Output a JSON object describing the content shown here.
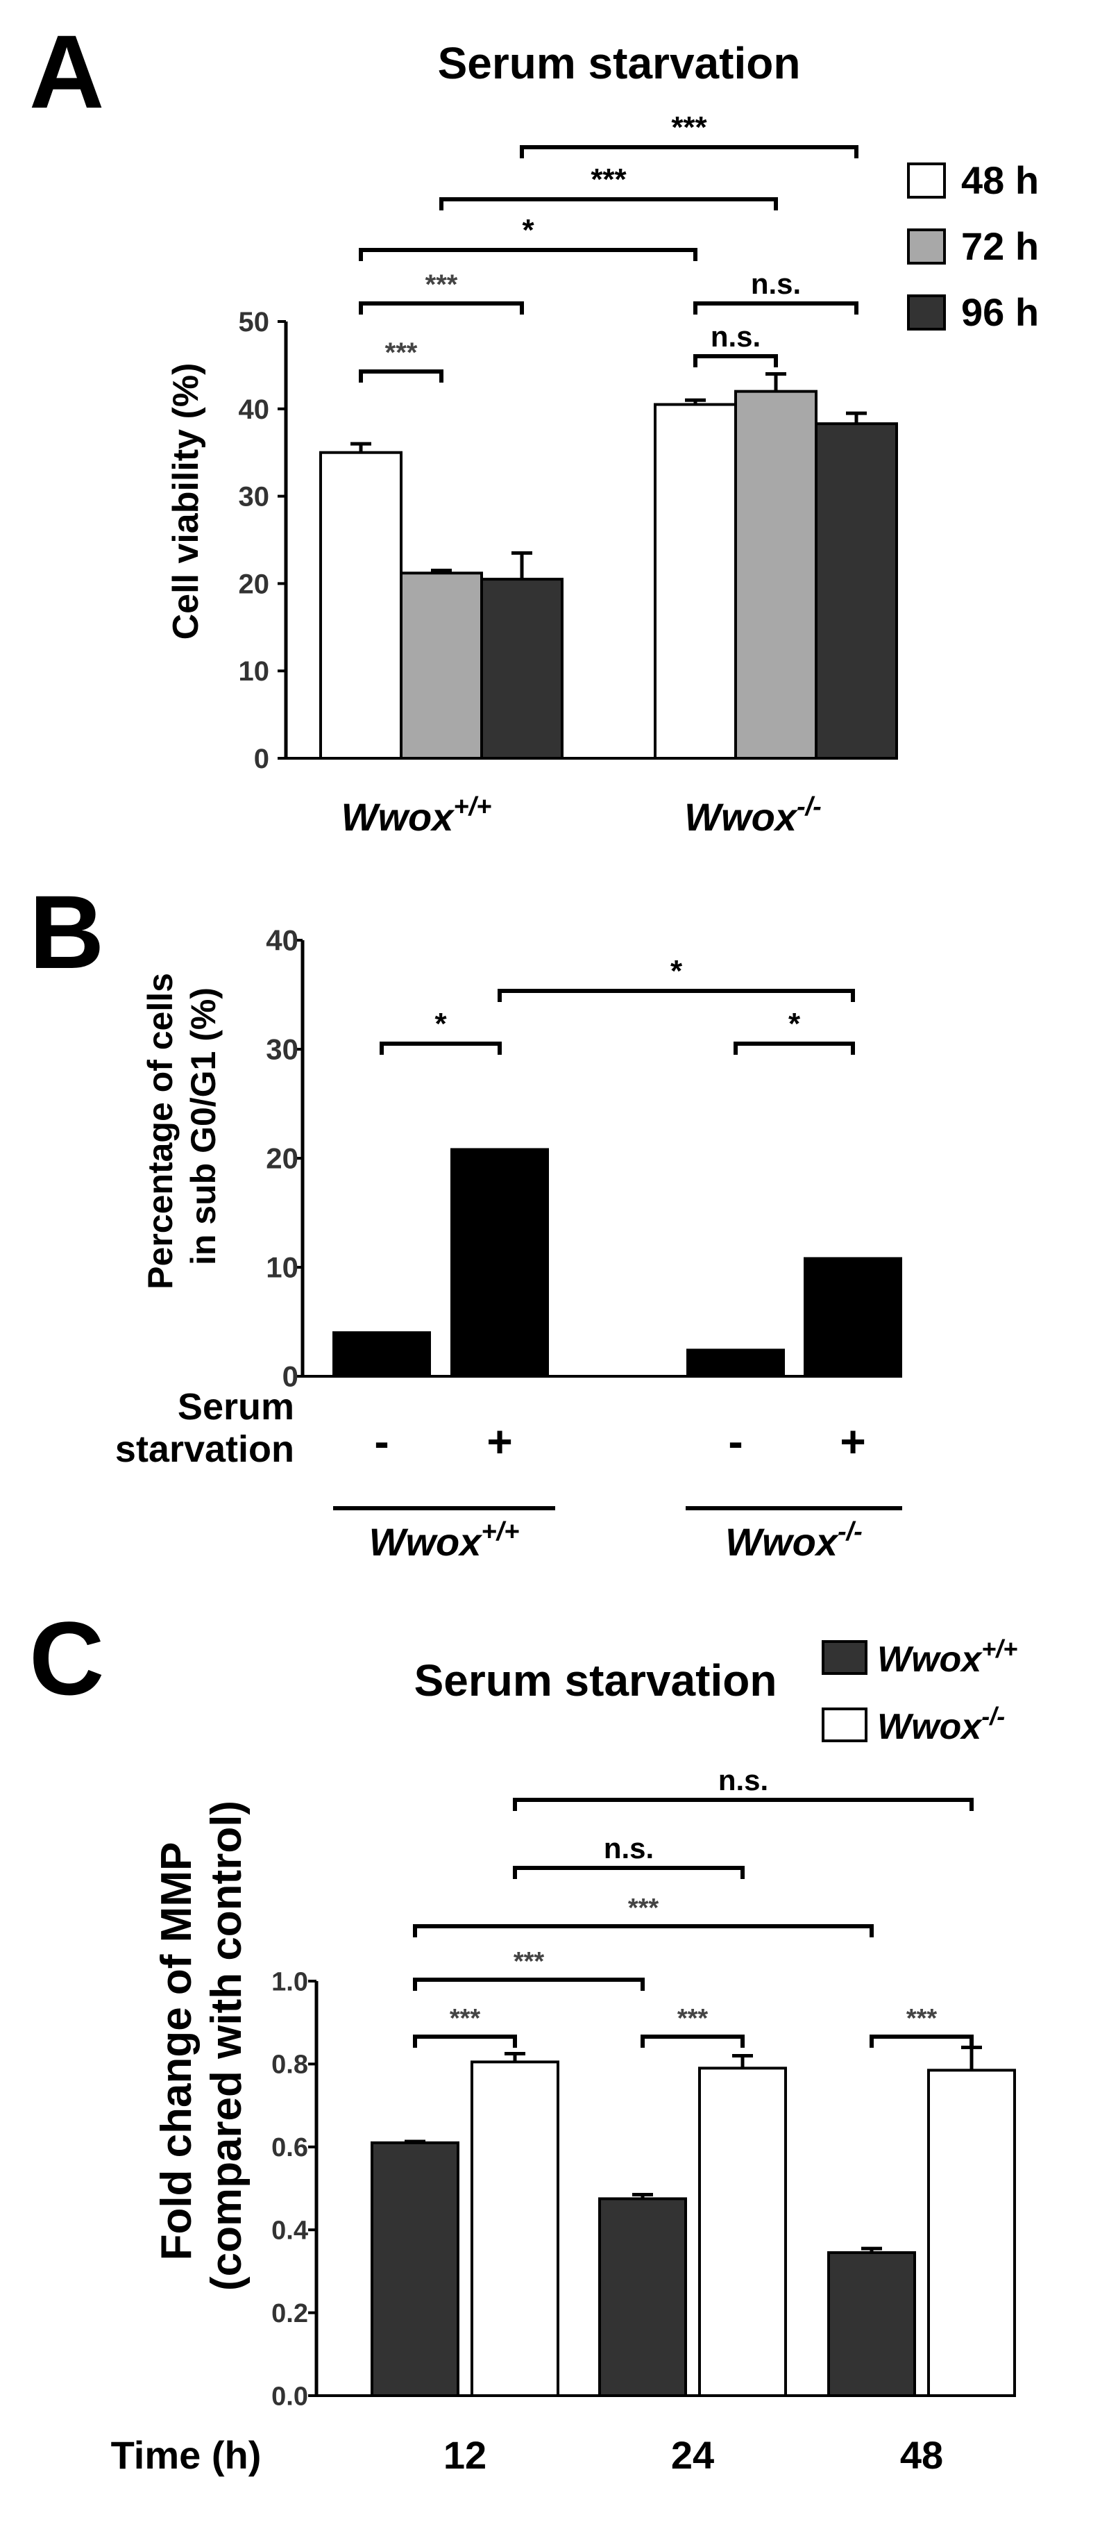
{
  "figure": {
    "panels": [
      {
        "letter": "A",
        "title": "Serum starvation",
        "ylabel": "Cell viability (%)",
        "yticks": [
          "0",
          "10",
          "20",
          "30",
          "40",
          "50"
        ],
        "group_labels": [
          {
            "main": "Wwox",
            "sup": "+/+"
          },
          {
            "main": "Wwox",
            "sup": "-/-"
          }
        ],
        "legend": [
          "48 h",
          "72 h",
          "96 h"
        ],
        "significance": [
          "***",
          "***",
          "*",
          "***",
          "***",
          "n.s.",
          "n.s."
        ]
      },
      {
        "letter": "B",
        "ylabel_line1": "Percentage of cells",
        "ylabel_line2": "in sub G0/G1 (%)",
        "yticks": [
          "0",
          "10",
          "20",
          "30",
          "40"
        ],
        "row_label_line1": "Serum",
        "row_label_line2": "starvation",
        "treatment_signs": [
          "-",
          "+",
          "-",
          "+"
        ],
        "group_labels": [
          {
            "main": "Wwox",
            "sup": "+/+"
          },
          {
            "main": "Wwox",
            "sup": "-/-"
          }
        ],
        "significance": [
          "*",
          "*",
          "*"
        ]
      },
      {
        "letter": "C",
        "title": "Serum starvation",
        "ylabel_line1": "Fold change of MMP",
        "ylabel_line2": "(compared with control)",
        "yticks": [
          "0.0",
          "0.2",
          "0.4",
          "0.6",
          "0.8",
          "1.0"
        ],
        "xlabel": "Time (h)",
        "xticks": [
          "12",
          "24",
          "48"
        ],
        "legend": [
          {
            "main": "Wwox",
            "sup": "+/+"
          },
          {
            "main": "Wwox",
            "sup": "-/-"
          }
        ],
        "significance": [
          "n.s.",
          "n.s.",
          "***",
          "***",
          "***",
          "***",
          "***"
        ]
      }
    ]
  },
  "chart_data": [
    {
      "type": "bar",
      "title": "Serum starvation",
      "ylabel": "Cell viability (%)",
      "ylim": [
        0,
        50
      ],
      "categories": [
        "Wwox+/+",
        "Wwox-/-"
      ],
      "series": [
        {
          "name": "48 h",
          "values": [
            35.0,
            40.5
          ],
          "errors": [
            1.0,
            0.5
          ],
          "color": "#ffffff"
        },
        {
          "name": "72 h",
          "values": [
            21.2,
            42.0
          ],
          "errors": [
            0.3,
            2.0
          ],
          "color": "#a8a8a8"
        },
        {
          "name": "96 h",
          "values": [
            20.5,
            38.3
          ],
          "errors": [
            3.0,
            1.2
          ],
          "color": "#333333"
        }
      ],
      "legend_position": "top-right",
      "comparisons": [
        {
          "from": "Wwox+/+ 48 h",
          "to": "Wwox+/+ 72 h",
          "label": "***"
        },
        {
          "from": "Wwox+/+ 48 h",
          "to": "Wwox+/+ 96 h",
          "label": "***"
        },
        {
          "from": "Wwox+/+ 48 h",
          "to": "Wwox-/- 48 h",
          "label": "*"
        },
        {
          "from": "Wwox+/+ 72 h",
          "to": "Wwox-/- 72 h",
          "label": "***"
        },
        {
          "from": "Wwox+/+ 96 h",
          "to": "Wwox-/- 96 h",
          "label": "***"
        },
        {
          "from": "Wwox-/- 48 h",
          "to": "Wwox-/- 72 h",
          "label": "n.s."
        },
        {
          "from": "Wwox-/- 48 h",
          "to": "Wwox-/- 96 h",
          "label": "n.s."
        }
      ]
    },
    {
      "type": "bar",
      "ylabel": "Percentage of cells in sub G0/G1 (%)",
      "ylim": [
        0,
        40
      ],
      "categories": [
        "Wwox+/+ -",
        "Wwox+/+ +",
        "Wwox-/- -",
        "Wwox-/- +"
      ],
      "values": [
        4.0,
        20.8,
        2.4,
        10.8
      ],
      "color": "#000000",
      "comparisons": [
        {
          "from": "Wwox+/+ -",
          "to": "Wwox+/+ +",
          "label": "*"
        },
        {
          "from": "Wwox+/+ +",
          "to": "Wwox-/- +",
          "label": "*"
        },
        {
          "from": "Wwox-/- -",
          "to": "Wwox-/- +",
          "label": "*"
        }
      ]
    },
    {
      "type": "bar",
      "title": "Serum starvation",
      "xlabel": "Time (h)",
      "ylabel": "Fold change of MMP (compared with control)",
      "ylim": [
        0,
        1.0
      ],
      "categories": [
        "12",
        "24",
        "48"
      ],
      "series": [
        {
          "name": "Wwox+/+",
          "values": [
            0.61,
            0.475,
            0.345
          ],
          "errors": [
            0.003,
            0.01,
            0.01
          ],
          "color": "#333333"
        },
        {
          "name": "Wwox-/-",
          "values": [
            0.805,
            0.79,
            0.785
          ],
          "errors": [
            0.02,
            0.03,
            0.055
          ],
          "color": "#ffffff"
        }
      ],
      "legend_position": "top-right",
      "comparisons": [
        {
          "from": "12 Wwox+/+",
          "to": "12 Wwox-/-",
          "label": "***"
        },
        {
          "from": "24 Wwox+/+",
          "to": "24 Wwox-/-",
          "label": "***"
        },
        {
          "from": "48 Wwox+/+",
          "to": "48 Wwox-/-",
          "label": "***"
        },
        {
          "from": "12 Wwox+/+",
          "to": "24 Wwox+/+",
          "label": "***"
        },
        {
          "from": "12 Wwox+/+",
          "to": "48 Wwox+/+",
          "label": "***"
        },
        {
          "from": "12 Wwox-/-",
          "to": "24 Wwox-/-",
          "label": "n.s."
        },
        {
          "from": "12 Wwox-/-",
          "to": "48 Wwox-/-",
          "label": "n.s."
        }
      ]
    }
  ]
}
